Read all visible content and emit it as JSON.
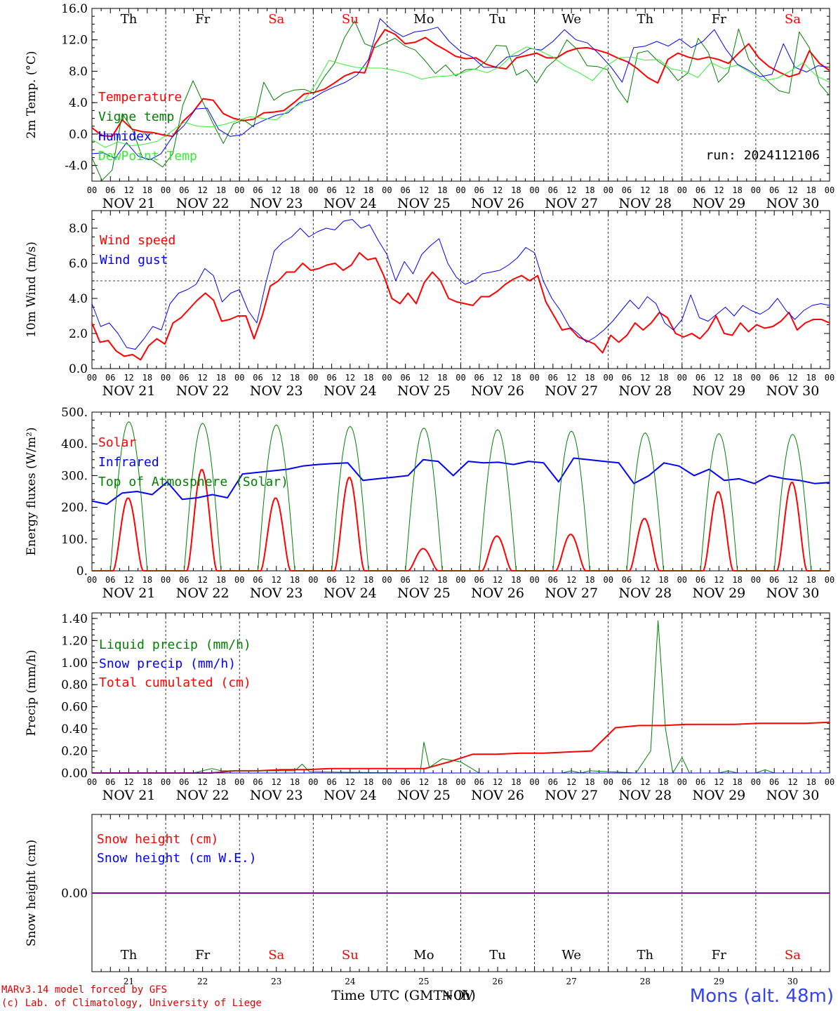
{
  "days": [
    "Th",
    "Fr",
    "Sa",
    "Su",
    "Mo",
    "Tu",
    "We",
    "Th",
    "Fr",
    "Sa"
  ],
  "weekend": [
    false,
    false,
    true,
    true,
    false,
    false,
    false,
    false,
    false,
    true
  ],
  "dates": [
    "NOV 21",
    "NOV 22",
    "NOV 23",
    "NOV 24",
    "NOV 25",
    "NOV 26",
    "NOV 27",
    "NOV 28",
    "NOV 29",
    "NOV 30"
  ],
  "day_numbers": [
    "21",
    "22",
    "23",
    "24",
    "25",
    "26",
    "27",
    "28",
    "29",
    "30"
  ],
  "hour_ticks": [
    "00",
    "06",
    "12",
    "18"
  ],
  "run_label": "run: 2024112106",
  "footer": {
    "model": "MARv3.14 model forced by GFS",
    "copyright": "(c) Lab. of Climatology, University of Liege",
    "xlabel": "Time UTC (GMT+0h)",
    "xlabel_overlay": "NOV",
    "station": "Mons (alt. 48m)"
  },
  "colors": {
    "red": "#ff0000",
    "green": "#008000",
    "blue": "#0000ff",
    "lightgreen": "#33ee33",
    "purple": "#8000a0",
    "station": "#3344ee"
  },
  "chart_data": [
    {
      "type": "line",
      "ylabel": "2m Temp. (°C)",
      "ylim": [
        -6,
        16
      ],
      "yticks": [
        "16.0",
        "12.0",
        "8.0",
        "4.0",
        "0.0",
        "-4.0"
      ],
      "ytick_values": [
        16,
        12,
        8,
        4,
        0,
        -4
      ],
      "dashed_y": 0,
      "legend": [
        "Temperature",
        "Vigne temp",
        "Humidex",
        "DewPoint Temp"
      ],
      "series": [
        {
          "name": "Temperature",
          "color": "red",
          "width": 2,
          "values": [
            0.8,
            -0.2,
            -0.3,
            1.8,
            0.6,
            0.3,
            0.2,
            -0.1,
            -0.3,
            1.6,
            2.8,
            4.5,
            4.3,
            2.6,
            2.0,
            1.7,
            1.9,
            2.7,
            2.8,
            3.0,
            4.0,
            5.1,
            5.3,
            5.7,
            6.5,
            7.4,
            7.9,
            7.8,
            11.4,
            13.3,
            12.7,
            11.5,
            11.7,
            12.3,
            11.4,
            10.7,
            9.9,
            9.6,
            9.7,
            8.9,
            8.5,
            8.3,
            9.7,
            10.0,
            10.3,
            9.7,
            9.7,
            10.5,
            10.9,
            11.0,
            10.7,
            10.3,
            9.7,
            9.2,
            8.3,
            7.2,
            6.5,
            9.5,
            10.3,
            9.8,
            9.5,
            9.8,
            9.5,
            9.0,
            10.3,
            11.5,
            9.7,
            8.6,
            7.9,
            7.3,
            7.7,
            10.6,
            9.0,
            8.1
          ]
        },
        {
          "name": "Vigne temp",
          "color": "green",
          "width": 1,
          "values": [
            -3.0,
            -5.9,
            -4.6,
            2.6,
            0.6,
            -3.0,
            -3.3,
            -4.2,
            -2.5,
            3.7,
            6.8,
            4.0,
            1.3,
            -1.2,
            1.3,
            1.8,
            0.9,
            6.6,
            4.3,
            5.2,
            5.6,
            5.7,
            5.2,
            7.3,
            9.0,
            12.3,
            14.4,
            11.5,
            11.0,
            11.6,
            12.2,
            11.2,
            10.7,
            9.3,
            7.7,
            8.8,
            7.4,
            8.2,
            8.3,
            9.3,
            11.3,
            11.2,
            7.5,
            8.2,
            6.5,
            8.5,
            9.6,
            12.0,
            10.8,
            8.7,
            8.6,
            8.2,
            5.8,
            4.0,
            10.3,
            10.6,
            9.3,
            8.4,
            6.8,
            7.8,
            12.2,
            10.4,
            6.6,
            7.9,
            13.4,
            9.5,
            8.0,
            6.6,
            5.5,
            5.2,
            13.0,
            11.0,
            6.4,
            4.9
          ]
        },
        {
          "name": "Humidex",
          "color": "blue",
          "width": 1,
          "values": [
            -2.5,
            -2.4,
            -3.1,
            -1.1,
            -2.8,
            -3.3,
            -2.5,
            -0.3,
            1.1,
            3.2,
            3.3,
            0.6,
            -0.3,
            -0.1,
            1.1,
            1.8,
            2.4,
            2.7,
            4.0,
            4.4,
            5.3,
            6.0,
            6.6,
            7.5,
            9.5,
            14.7,
            13.3,
            12.4,
            13.0,
            13.2,
            13.6,
            11.8,
            10.5,
            9.8,
            8.5,
            8.5,
            9.8,
            10.0,
            10.9,
            10.7,
            11.8,
            13.3,
            12.0,
            11.6,
            10.2,
            8.6,
            6.6,
            11.0,
            11.2,
            11.8,
            11.2,
            12.1,
            11.0,
            11.8,
            13.3,
            10.8,
            8.9,
            8.1,
            7.3,
            7.6,
            11.5,
            8.5,
            7.9,
            8.7,
            8.5
          ]
        },
        {
          "name": "DewPoint Temp",
          "color": "lightgreen",
          "width": 1,
          "values": [
            -0.7,
            -1.7,
            -1.0,
            -1.5,
            -1.3,
            -0.9,
            0.3,
            1.5,
            1.0,
            0.9,
            1.2,
            1.7,
            2.2,
            2.0,
            1.8,
            3.1,
            4.0,
            6.4,
            9.4,
            8.9,
            8.5,
            8.4,
            8.4,
            8.1,
            7.7,
            7.0,
            7.3,
            7.4,
            7.7,
            8.3,
            7.8,
            8.6,
            10.2,
            11.1,
            10.6,
            9.8,
            8.6,
            7.8,
            6.8,
            8.6,
            9.7,
            9.8,
            9.4,
            9.5,
            8.3,
            8.0,
            7.2,
            9.1,
            8.3,
            8.8,
            7.8,
            6.8,
            7.1,
            8.0,
            9.1,
            7.4,
            6.6
          ]
        }
      ]
    },
    {
      "type": "line",
      "ylabel": "10m Wind (m/s)",
      "ylim": [
        0,
        9
      ],
      "yticks": [
        "8.0",
        "6.0",
        "4.0",
        "2.0",
        "0.0"
      ],
      "ytick_values": [
        8,
        6,
        4,
        2,
        0
      ],
      "dashed_y": 5,
      "legend": [
        "Wind speed",
        "Wind gust"
      ],
      "series": [
        {
          "name": "Wind speed",
          "color": "red",
          "width": 2,
          "values": [
            2.6,
            1.5,
            1.6,
            1.0,
            0.7,
            0.8,
            0.5,
            1.3,
            1.7,
            1.4,
            2.6,
            2.9,
            3.4,
            3.9,
            4.3,
            3.9,
            2.7,
            2.8,
            3.0,
            3.0,
            1.7,
            3.0,
            4.7,
            5.0,
            5.5,
            5.5,
            6.0,
            5.6,
            5.7,
            5.9,
            6.0,
            5.6,
            5.9,
            6.6,
            6.2,
            6.3,
            5.3,
            4.0,
            3.7,
            4.3,
            3.7,
            4.9,
            5.5,
            5.0,
            4.0,
            3.8,
            3.7,
            3.6,
            4.1,
            4.1,
            4.4,
            4.8,
            5.1,
            5.3,
            5.0,
            5.3,
            3.8,
            3.0,
            2.2,
            2.3,
            1.8,
            1.6,
            1.4,
            0.9,
            1.9,
            1.5,
            1.9,
            2.6,
            2.2,
            2.6,
            3.2,
            2.9,
            2.0,
            1.8,
            2.0,
            1.7,
            2.2,
            3.0,
            2.0,
            1.9,
            2.6,
            2.1,
            2.5,
            2.3,
            2.4,
            2.7,
            3.2,
            2.2,
            2.6,
            2.8,
            2.8,
            2.6
          ]
        },
        {
          "name": "Wind gust",
          "color": "blue",
          "width": 1,
          "values": [
            3.7,
            2.4,
            2.6,
            2.0,
            1.2,
            1.1,
            1.7,
            2.4,
            2.2,
            3.7,
            4.3,
            4.5,
            4.8,
            5.7,
            5.3,
            3.8,
            4.3,
            4.5,
            3.3,
            2.6,
            4.8,
            6.7,
            7.2,
            7.5,
            8.0,
            7.5,
            7.8,
            8.0,
            7.9,
            8.4,
            8.5,
            8.0,
            8.2,
            7.3,
            6.5,
            5.0,
            6.1,
            5.4,
            6.5,
            7.0,
            7.4,
            6.0,
            5.2,
            4.8,
            5.0,
            5.4,
            5.5,
            5.6,
            5.9,
            6.3,
            6.9,
            6.6,
            5.0,
            4.0,
            3.3,
            2.4,
            2.0,
            1.5,
            1.8,
            2.2,
            2.7,
            3.3,
            3.9,
            3.4,
            4.1,
            3.7,
            2.6,
            2.2,
            2.8,
            4.2,
            2.9,
            2.7,
            3.1,
            3.5,
            3.0,
            3.6,
            3.3,
            3.1,
            3.4,
            4.0,
            3.3,
            2.8,
            3.3,
            3.6,
            3.7,
            3.6
          ]
        }
      ]
    },
    {
      "type": "line",
      "ylabel": "Energy fluxes (W/m²)",
      "ylim": [
        0,
        500
      ],
      "yticks": [
        "500.",
        "400.",
        "300.",
        "200.",
        "100.",
        "0."
      ],
      "ytick_values": [
        500,
        400,
        300,
        200,
        100,
        0
      ],
      "legend": [
        "Solar",
        "Infrared",
        "Top of Atmosphere (Solar)"
      ],
      "series": [
        {
          "name": "Solar",
          "color": "red",
          "width": 2,
          "days_peak": [
            230,
            320,
            230,
            295,
            70,
            110,
            115,
            165,
            250,
            280
          ]
        },
        {
          "name": "Infrared",
          "color": "blue",
          "width": 2,
          "values": [
            220,
            210,
            245,
            250,
            240,
            280,
            225,
            230,
            240,
            230,
            305,
            310,
            315,
            320,
            330,
            335,
            338,
            340,
            285,
            290,
            295,
            300,
            350,
            345,
            300,
            345,
            340,
            342,
            335,
            345,
            340,
            280,
            355,
            350,
            345,
            340,
            275,
            300,
            340,
            330,
            300,
            320,
            285,
            290,
            275,
            300,
            290,
            285,
            275,
            278
          ]
        },
        {
          "name": "Top of Atmosphere (Solar)",
          "color": "green",
          "width": 1,
          "days_peak": [
            470,
            465,
            460,
            455,
            450,
            445,
            440,
            435,
            432,
            430
          ]
        }
      ]
    },
    {
      "type": "line",
      "ylabel": "Precip (mm/h)",
      "ylim": [
        0,
        1.45
      ],
      "yticks": [
        "1.40",
        "1.20",
        "1.00",
        "0.80",
        "0.60",
        "0.40",
        "0.20",
        "0.00"
      ],
      "ytick_values": [
        1.4,
        1.2,
        1.0,
        0.8,
        0.6,
        0.4,
        0.2,
        0.0
      ],
      "legend": [
        "Liquid precip (mm/h)",
        "Snow precip (mm/h)",
        "Total cumulated (cm)"
      ],
      "series": [
        {
          "name": "Total cumulated (cm)",
          "color": "red",
          "width": 2,
          "values": [
            0,
            0,
            0,
            0,
            0,
            0,
            0.02,
            0.02,
            0.03,
            0.03,
            0.04,
            0.04,
            0.04,
            0.04,
            0.04,
            0.1,
            0.17,
            0.17,
            0.18,
            0.18,
            0.19,
            0.2,
            0.41,
            0.43,
            0.43,
            0.44,
            0.44,
            0.44,
            0.45,
            0.45,
            0.45,
            0.46
          ]
        },
        {
          "name": "Liquid precip (mm/h)",
          "color": "green",
          "width": 1,
          "points": [
            [
              0,
              0
            ],
            [
              5.5,
              0
            ],
            [
              6.5,
              0.04
            ],
            [
              7,
              0.02
            ],
            [
              11,
              0.02
            ],
            [
              11.4,
              0.08
            ],
            [
              11.8,
              0.01
            ],
            [
              17.8,
              0
            ],
            [
              18,
              0.28
            ],
            [
              18.3,
              0.05
            ],
            [
              19,
              0.13
            ],
            [
              20,
              0.1
            ],
            [
              21,
              0
            ],
            [
              25.5,
              0
            ],
            [
              26,
              0.02
            ],
            [
              26.5,
              0
            ],
            [
              27,
              0.02
            ],
            [
              29.5,
              0
            ],
            [
              30.3,
              0.2
            ],
            [
              30.7,
              1.38
            ],
            [
              31.1,
              0.4
            ],
            [
              31.5,
              0
            ],
            [
              32,
              0.14
            ],
            [
              32.4,
              0
            ],
            [
              34,
              0
            ],
            [
              34.5,
              0.02
            ],
            [
              35,
              0
            ],
            [
              36,
              0
            ],
            [
              36.5,
              0.03
            ],
            [
              37,
              0
            ],
            [
              40,
              0
            ]
          ]
        },
        {
          "name": "Snow precip (mm/h)",
          "color": "blue",
          "width": 1,
          "values": [
            0,
            0
          ]
        }
      ]
    },
    {
      "type": "line",
      "ylabel": "Snow height (cm)",
      "ylim": [
        -1,
        1
      ],
      "yticks": [
        "0.00"
      ],
      "ytick_values": [
        0
      ],
      "legend": [
        "Snow height (cm)",
        "Snow height (cm W.E.)"
      ],
      "series": [
        {
          "name": "Snow height (cm)",
          "color": "purple",
          "width": 2,
          "values": [
            0,
            0
          ]
        }
      ]
    }
  ]
}
